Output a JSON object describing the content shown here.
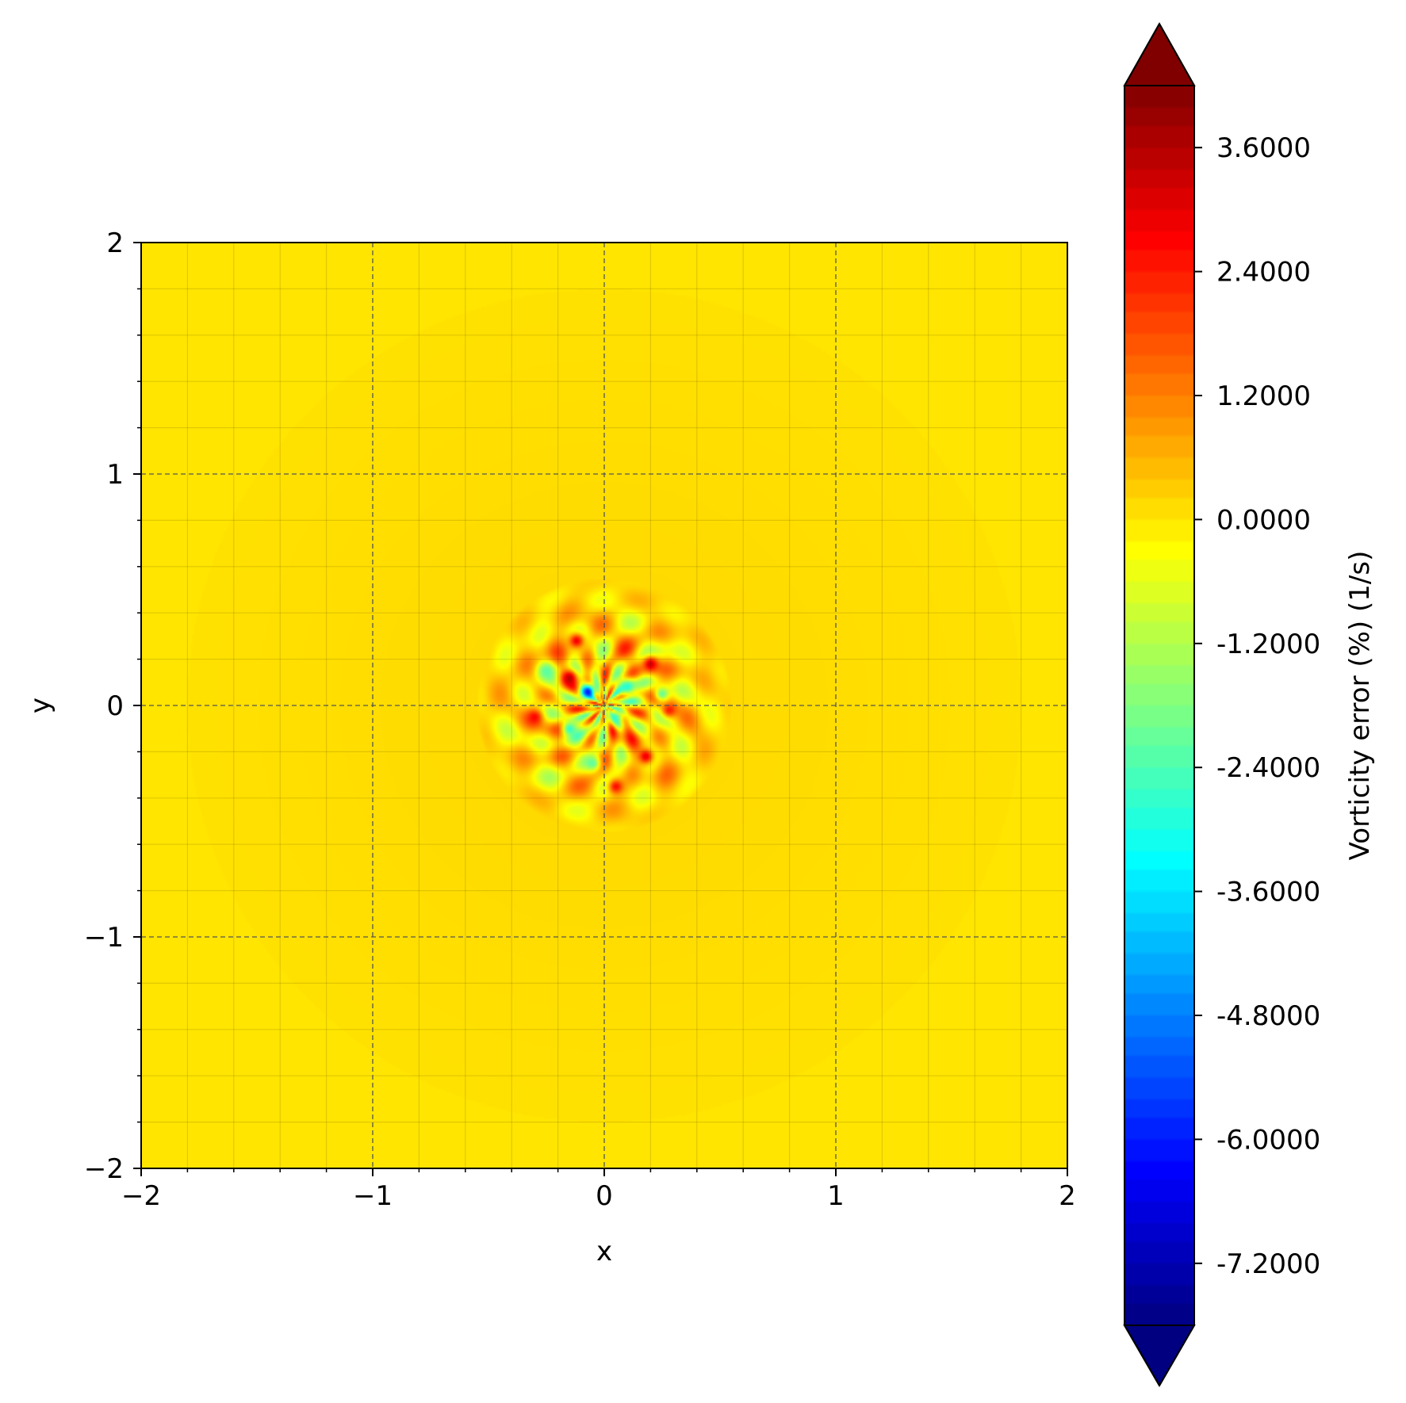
{
  "chart_data": {
    "type": "heatmap",
    "title": "",
    "xlabel": "x",
    "ylabel": "y",
    "xlim": [
      -2,
      2
    ],
    "ylim": [
      -2,
      2
    ],
    "x_ticks": [
      -2,
      -1,
      0,
      1,
      2
    ],
    "y_ticks": [
      -2,
      -1,
      0,
      1,
      2
    ],
    "x_tick_labels": [
      "−2",
      "−1",
      "0",
      "1",
      "2"
    ],
    "y_tick_labels": [
      "−2",
      "−1",
      "0",
      "1",
      "2"
    ],
    "grid": true,
    "minor_ticks": true,
    "colormap": "jet",
    "colorbar": {
      "label": "Vorticity error (%) (1/s)",
      "range": [
        -7.8,
        4.2
      ],
      "extend": "both",
      "ticks": [
        3.6,
        2.4,
        1.2,
        0.0,
        -1.2,
        -2.4,
        -3.6,
        -4.8,
        -6.0,
        -7.2
      ],
      "tick_labels": [
        "3.6000",
        "2.4000",
        "1.2000",
        "0.0000",
        "-1.2000",
        "-2.4000",
        "-3.6000",
        "-4.8000",
        "-6.0000",
        "-7.2000"
      ]
    },
    "background_value": 0.0,
    "halo": {
      "center": [
        0,
        0
      ],
      "radius": 1.8,
      "value": 0.15
    },
    "error_region": {
      "center": [
        0,
        0
      ],
      "radius": 0.55,
      "min_value": -7.2,
      "max_value": 4.0
    },
    "features": [
      {
        "x": -0.07,
        "y": 0.06,
        "value": -7.2
      },
      {
        "x": -0.15,
        "y": 0.12,
        "value": 3.9
      },
      {
        "x": -0.12,
        "y": 0.28,
        "value": 3.6
      },
      {
        "x": 0.2,
        "y": 0.18,
        "value": 3.8
      },
      {
        "x": 0.18,
        "y": -0.22,
        "value": 3.7
      },
      {
        "x": -0.3,
        "y": -0.05,
        "value": 3.0
      },
      {
        "x": 0.28,
        "y": -0.02,
        "value": 2.9
      },
      {
        "x": 0.05,
        "y": -0.35,
        "value": 3.2
      },
      {
        "x": 0.1,
        "y": 0.08,
        "value": -3.2
      },
      {
        "x": 0.05,
        "y": -0.05,
        "value": -3.0
      },
      {
        "x": -0.15,
        "y": -0.1,
        "value": -3.4
      },
      {
        "x": 0.25,
        "y": 0.05,
        "value": -2.8
      },
      {
        "x": -0.05,
        "y": -0.25,
        "value": -2.6
      },
      {
        "x": -0.25,
        "y": 0.15,
        "value": -2.4
      }
    ]
  }
}
